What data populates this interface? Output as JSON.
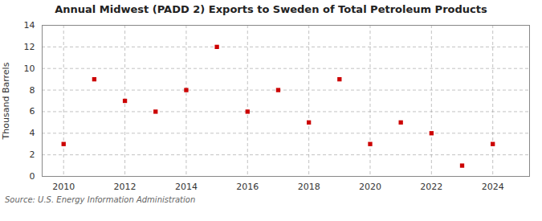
{
  "chart_data": {
    "type": "scatter",
    "title": "Annual Midwest (PADD 2) Exports to Sweden of Total Petroleum Products",
    "ylabel": "Thousand Barrels",
    "annotations": [
      "Source: U.S. Energy Information Administration"
    ],
    "x": [
      2010,
      2011,
      2012,
      2013,
      2014,
      2015,
      2016,
      2017,
      2018,
      2019,
      2020,
      2021,
      2022,
      2023,
      2024
    ],
    "values": [
      3,
      9,
      7,
      6,
      8,
      12,
      6,
      8,
      5,
      9,
      3,
      5,
      4,
      1,
      3
    ],
    "color": "#cc0000",
    "marker": "square",
    "xlim": [
      2009.3,
      2025.2
    ],
    "ylim": [
      0,
      14
    ],
    "xticks": [
      2010,
      2012,
      2014,
      2016,
      2018,
      2020,
      2022,
      2024
    ],
    "yticks": [
      0,
      2,
      4,
      6,
      8,
      10,
      12,
      14
    ],
    "grid": true
  }
}
